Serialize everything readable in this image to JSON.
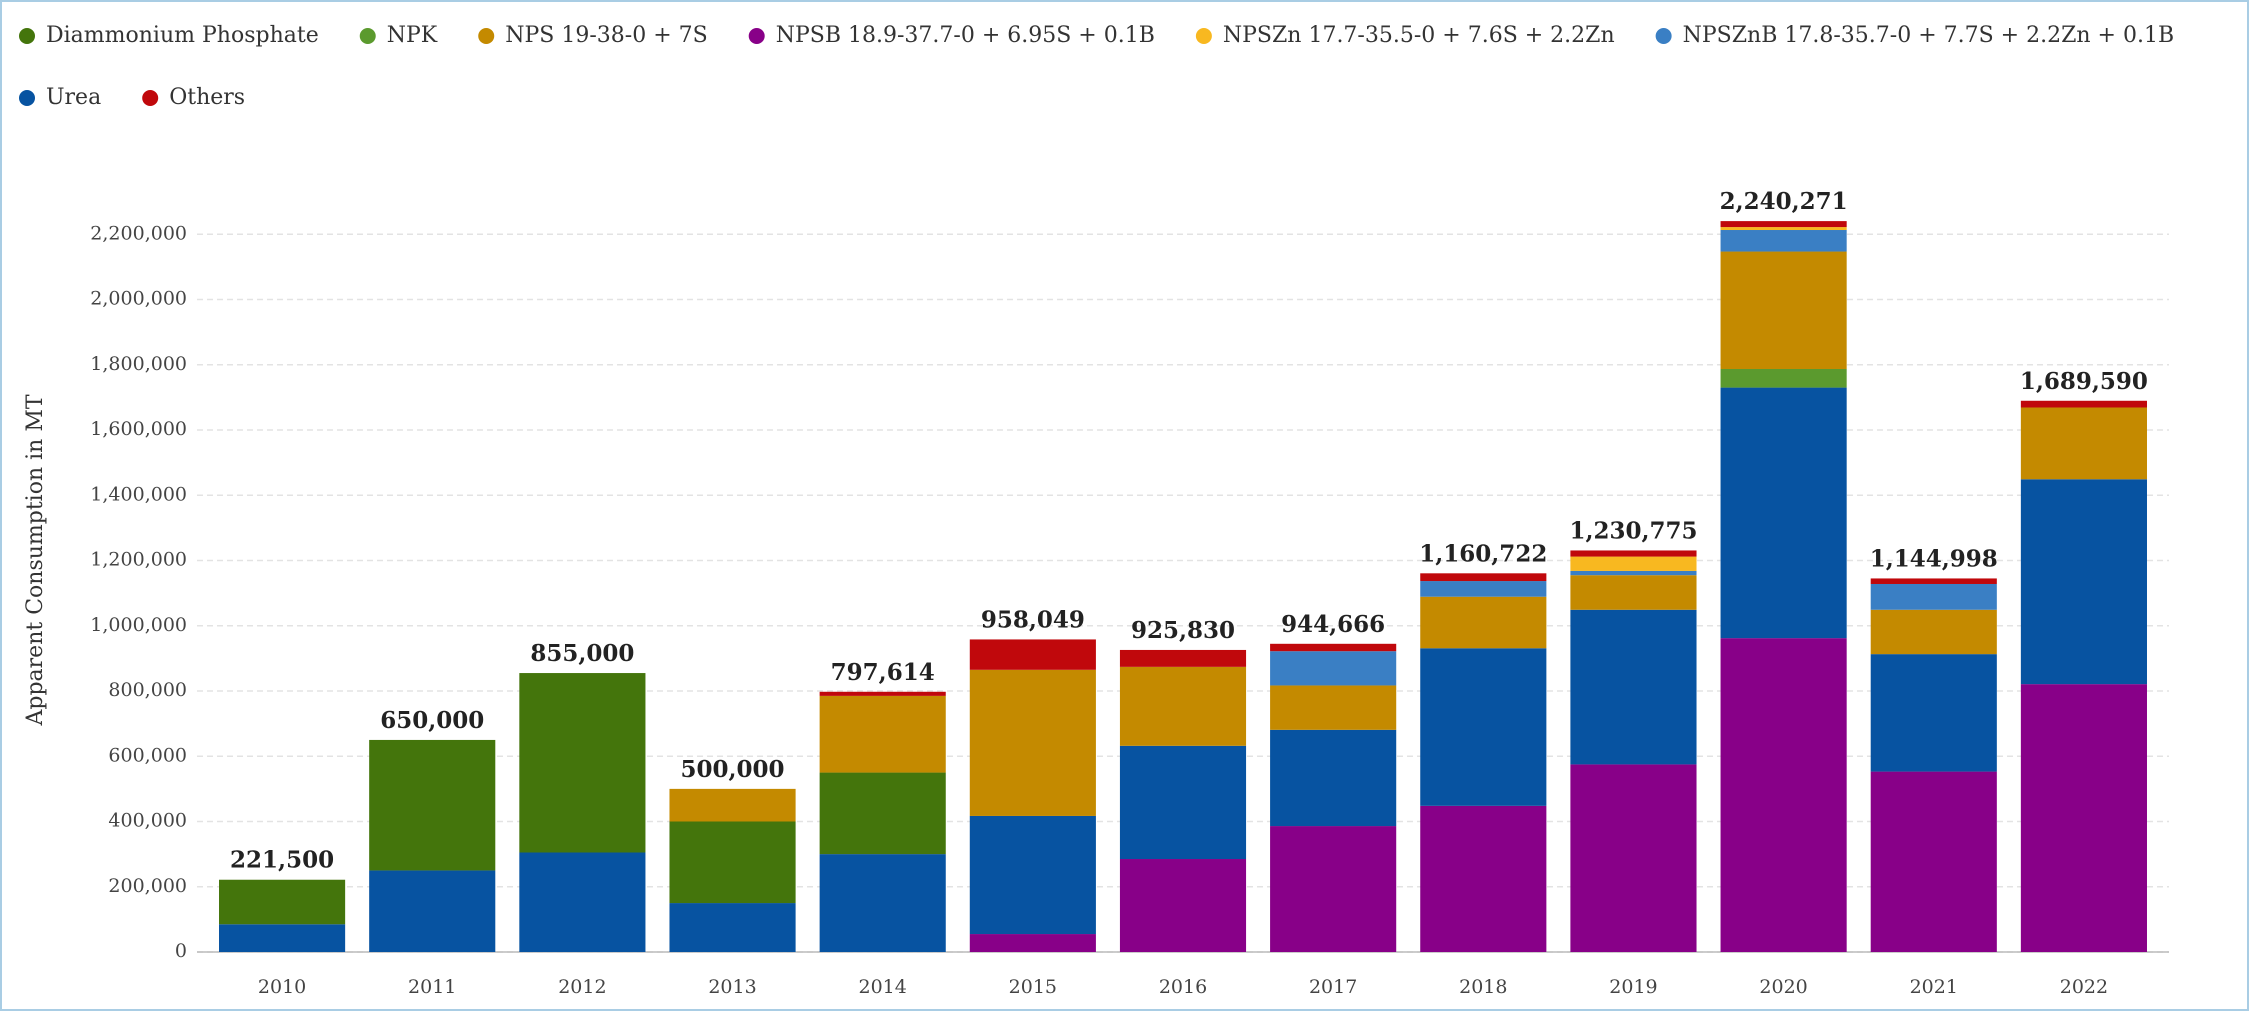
{
  "chart_data": {
    "type": "stacked-bar",
    "y_label": "Apparent Consumption in MT",
    "categories": [
      "2010",
      "2011",
      "2012",
      "2013",
      "2014",
      "2015",
      "2016",
      "2017",
      "2018",
      "2019",
      "2020",
      "2021",
      "2022"
    ],
    "series": [
      {
        "name": "Diammonium Phosphate",
        "color": "#44750c",
        "values": [
          136500,
          400000,
          550000,
          250000,
          250000,
          null,
          null,
          null,
          null,
          null,
          null,
          null,
          null
        ]
      },
      {
        "name": "NPK",
        "color": "#5b9a2e",
        "values": [
          null,
          null,
          null,
          null,
          null,
          null,
          null,
          null,
          null,
          null,
          57000,
          null,
          null
        ]
      },
      {
        "name": "NPS 19-38-0 + 7S",
        "color": "#c48a00",
        "values": [
          null,
          null,
          null,
          100000,
          235000,
          448000,
          242000,
          136000,
          158000,
          106000,
          360000,
          136000,
          220000
        ]
      },
      {
        "name": "NPSB 18.9-37.7-0 + 6.95S + 0.1B",
        "color": "#880088",
        "values": [
          null,
          null,
          null,
          null,
          null,
          55000,
          285000,
          386000,
          448000,
          575000,
          962000,
          553000,
          821000
        ]
      },
      {
        "name": "NPSZn 17.7-35.5-0 + 7.6S + 2.2Zn",
        "color": "#f8b820",
        "values": [
          null,
          null,
          null,
          null,
          null,
          null,
          null,
          null,
          null,
          44000,
          9000,
          null,
          null
        ]
      },
      {
        "name": "NPSZnB 17.8-35.7-0 + 7.7S + 2.2Zn + 0.1B",
        "color": "#3a7fc4",
        "values": [
          null,
          null,
          null,
          null,
          null,
          null,
          null,
          105000,
          48000,
          13000,
          66000,
          79000,
          null
        ]
      },
      {
        "name": "Urea",
        "color": "#0753a1",
        "values": [
          85000,
          250000,
          305000,
          150000,
          300000,
          362000,
          347000,
          295000,
          483000,
          474000,
          768000,
          360000,
          628000
        ]
      },
      {
        "name": "Others",
        "color": "#c0080c",
        "values": [
          null,
          null,
          null,
          null,
          12614,
          93049,
          51830,
          22666,
          23722,
          18775,
          18271,
          16998,
          20590
        ]
      }
    ],
    "totals": [
      221500,
      650000,
      855000,
      500000,
      797614,
      958049,
      925830,
      944666,
      1160722,
      1230775,
      2240271,
      1144998,
      1689590
    ],
    "total_labels": [
      "221,500",
      "650,000",
      "855,000",
      "500,000",
      "797,614",
      "958,049",
      "925,830",
      "944,666",
      "1,160,722",
      "1,230,775",
      "2,240,271",
      "1,144,998",
      "1,689,590"
    ],
    "ylim": [
      0,
      2400000
    ],
    "yticks": [
      0,
      {
        "value": 200000,
        "label": "200,000"
      },
      {
        "value": 400000,
        "label": "400,000"
      },
      {
        "value": 600000,
        "label": "600,000"
      },
      {
        "value": 800000,
        "label": "800,000"
      },
      {
        "value": 1000000,
        "label": "1,000,000"
      },
      {
        "value": 1200000,
        "label": "1,200,000"
      },
      {
        "value": 1400000,
        "label": "1,400,000"
      },
      {
        "value": 1600000,
        "label": "1,600,000"
      },
      {
        "value": 1800000,
        "label": "1,800,000"
      },
      {
        "value": 2000000,
        "label": "2,000,000"
      },
      {
        "value": 2200000,
        "label": "2,200,000"
      }
    ],
    "grid": true,
    "legend": "top-left"
  }
}
